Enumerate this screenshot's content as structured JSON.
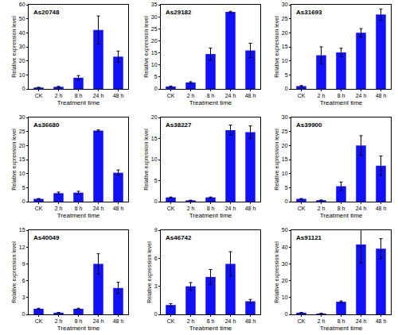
{
  "chart_data": [
    {
      "type": "bar",
      "title": "As20748",
      "categories": [
        "CK",
        "2 h",
        "8 h",
        "24 h",
        "48 h"
      ],
      "values": [
        1,
        1.5,
        8,
        42,
        23
      ],
      "errors": [
        0.2,
        0.3,
        1.5,
        10,
        4
      ],
      "color": "#1010ff",
      "ylim": [
        0,
        60
      ],
      "yticks": [
        0,
        10,
        20,
        30,
        40,
        50,
        60
      ],
      "xlabel": "Treatment time",
      "ylabel": "Relative expression level"
    },
    {
      "type": "bar",
      "title": "As29182",
      "categories": [
        "CK",
        "2 h",
        "8 h",
        "24 h",
        "48 h"
      ],
      "values": [
        1,
        2.7,
        14.5,
        32,
        16
      ],
      "errors": [
        0.2,
        0.3,
        2.5,
        0.3,
        3
      ],
      "color": "#1010ff",
      "ylim": [
        0,
        35
      ],
      "yticks": [
        0,
        5,
        10,
        15,
        20,
        25,
        30,
        35
      ],
      "xlabel": "Treatment time",
      "ylabel": "Relative expression level"
    },
    {
      "type": "bar",
      "title": "As31693",
      "categories": [
        "CK",
        "2 h",
        "8 h",
        "24 h",
        "48 h"
      ],
      "values": [
        1,
        12,
        13,
        20,
        26.5
      ],
      "errors": [
        0.2,
        3,
        1.5,
        1.5,
        2
      ],
      "color": "#1010ff",
      "ylim": [
        0,
        30
      ],
      "yticks": [
        0,
        5,
        10,
        15,
        20,
        25,
        30
      ],
      "xlabel": "Treatment time",
      "ylabel": "Relative expression level"
    },
    {
      "type": "bar",
      "title": "As36680",
      "categories": [
        "CK",
        "2 h",
        "8 h",
        "24 h",
        "48 h"
      ],
      "values": [
        1,
        3,
        3.2,
        25.3,
        10.3
      ],
      "errors": [
        0.1,
        0.4,
        0.5,
        0.3,
        1
      ],
      "color": "#1010ff",
      "ylim": [
        0,
        30
      ],
      "yticks": [
        0,
        5,
        10,
        15,
        20,
        25,
        30
      ],
      "xlabel": "Treatment time",
      "ylabel": "Relative expression level"
    },
    {
      "type": "bar",
      "title": "As38227",
      "categories": [
        "CK",
        "2 h",
        "8 h",
        "24 h",
        "48 h"
      ],
      "values": [
        1,
        0.3,
        1,
        17,
        16.5
      ],
      "errors": [
        0.1,
        0.05,
        0.1,
        1.2,
        1.5
      ],
      "color": "#1010ff",
      "ylim": [
        0,
        20
      ],
      "yticks": [
        0,
        5,
        10,
        15,
        20
      ],
      "xlabel": "Treatment time",
      "ylabel": "Relative expression level"
    },
    {
      "type": "bar",
      "title": "As39900",
      "categories": [
        "CK",
        "2 h",
        "8 h",
        "24 h",
        "48 h"
      ],
      "values": [
        1,
        0.5,
        5.5,
        20,
        12.8
      ],
      "errors": [
        0.1,
        0.1,
        1.5,
        3.5,
        3.5
      ],
      "color": "#1010ff",
      "ylim": [
        0,
        30
      ],
      "yticks": [
        0,
        5,
        10,
        15,
        20,
        25,
        30
      ],
      "xlabel": "Treatment time",
      "ylabel": "Relative expression level"
    },
    {
      "type": "bar",
      "title": "As40049",
      "categories": [
        "CK",
        "2 h",
        "8 h",
        "24 h",
        "48 h"
      ],
      "values": [
        1,
        0.3,
        1,
        9,
        4.7
      ],
      "errors": [
        0.1,
        0.05,
        0.1,
        1.8,
        1
      ],
      "color": "#1010ff",
      "ylim": [
        0,
        15
      ],
      "yticks": [
        0,
        3,
        6,
        9,
        12,
        15
      ],
      "xlabel": "Treatment time",
      "ylabel": "Relative expression level"
    },
    {
      "type": "bar",
      "title": "As46742",
      "categories": [
        "CK",
        "2 h",
        "8 h",
        "24 h",
        "48 h"
      ],
      "values": [
        1,
        3,
        4,
        5.4,
        1.4
      ],
      "errors": [
        0.15,
        0.4,
        0.8,
        1.3,
        0.2
      ],
      "color": "#1010ff",
      "ylim": [
        0,
        9
      ],
      "yticks": [
        0,
        3,
        6,
        9
      ],
      "xlabel": "Treatment time",
      "ylabel": "Relative expression level"
    },
    {
      "type": "bar",
      "title": "As91121",
      "categories": [
        "CK",
        "2 h",
        "8 h",
        "24 h",
        "48 h"
      ],
      "values": [
        1,
        0.5,
        7.5,
        41.5,
        39
      ],
      "errors": [
        0.2,
        0.1,
        0.5,
        11,
        6
      ],
      "color": "#1010ff",
      "ylim": [
        0,
        50
      ],
      "yticks": [
        0,
        10,
        20,
        30,
        40,
        50
      ],
      "xlabel": "Treatment time",
      "ylabel": "Relative expression level"
    }
  ]
}
